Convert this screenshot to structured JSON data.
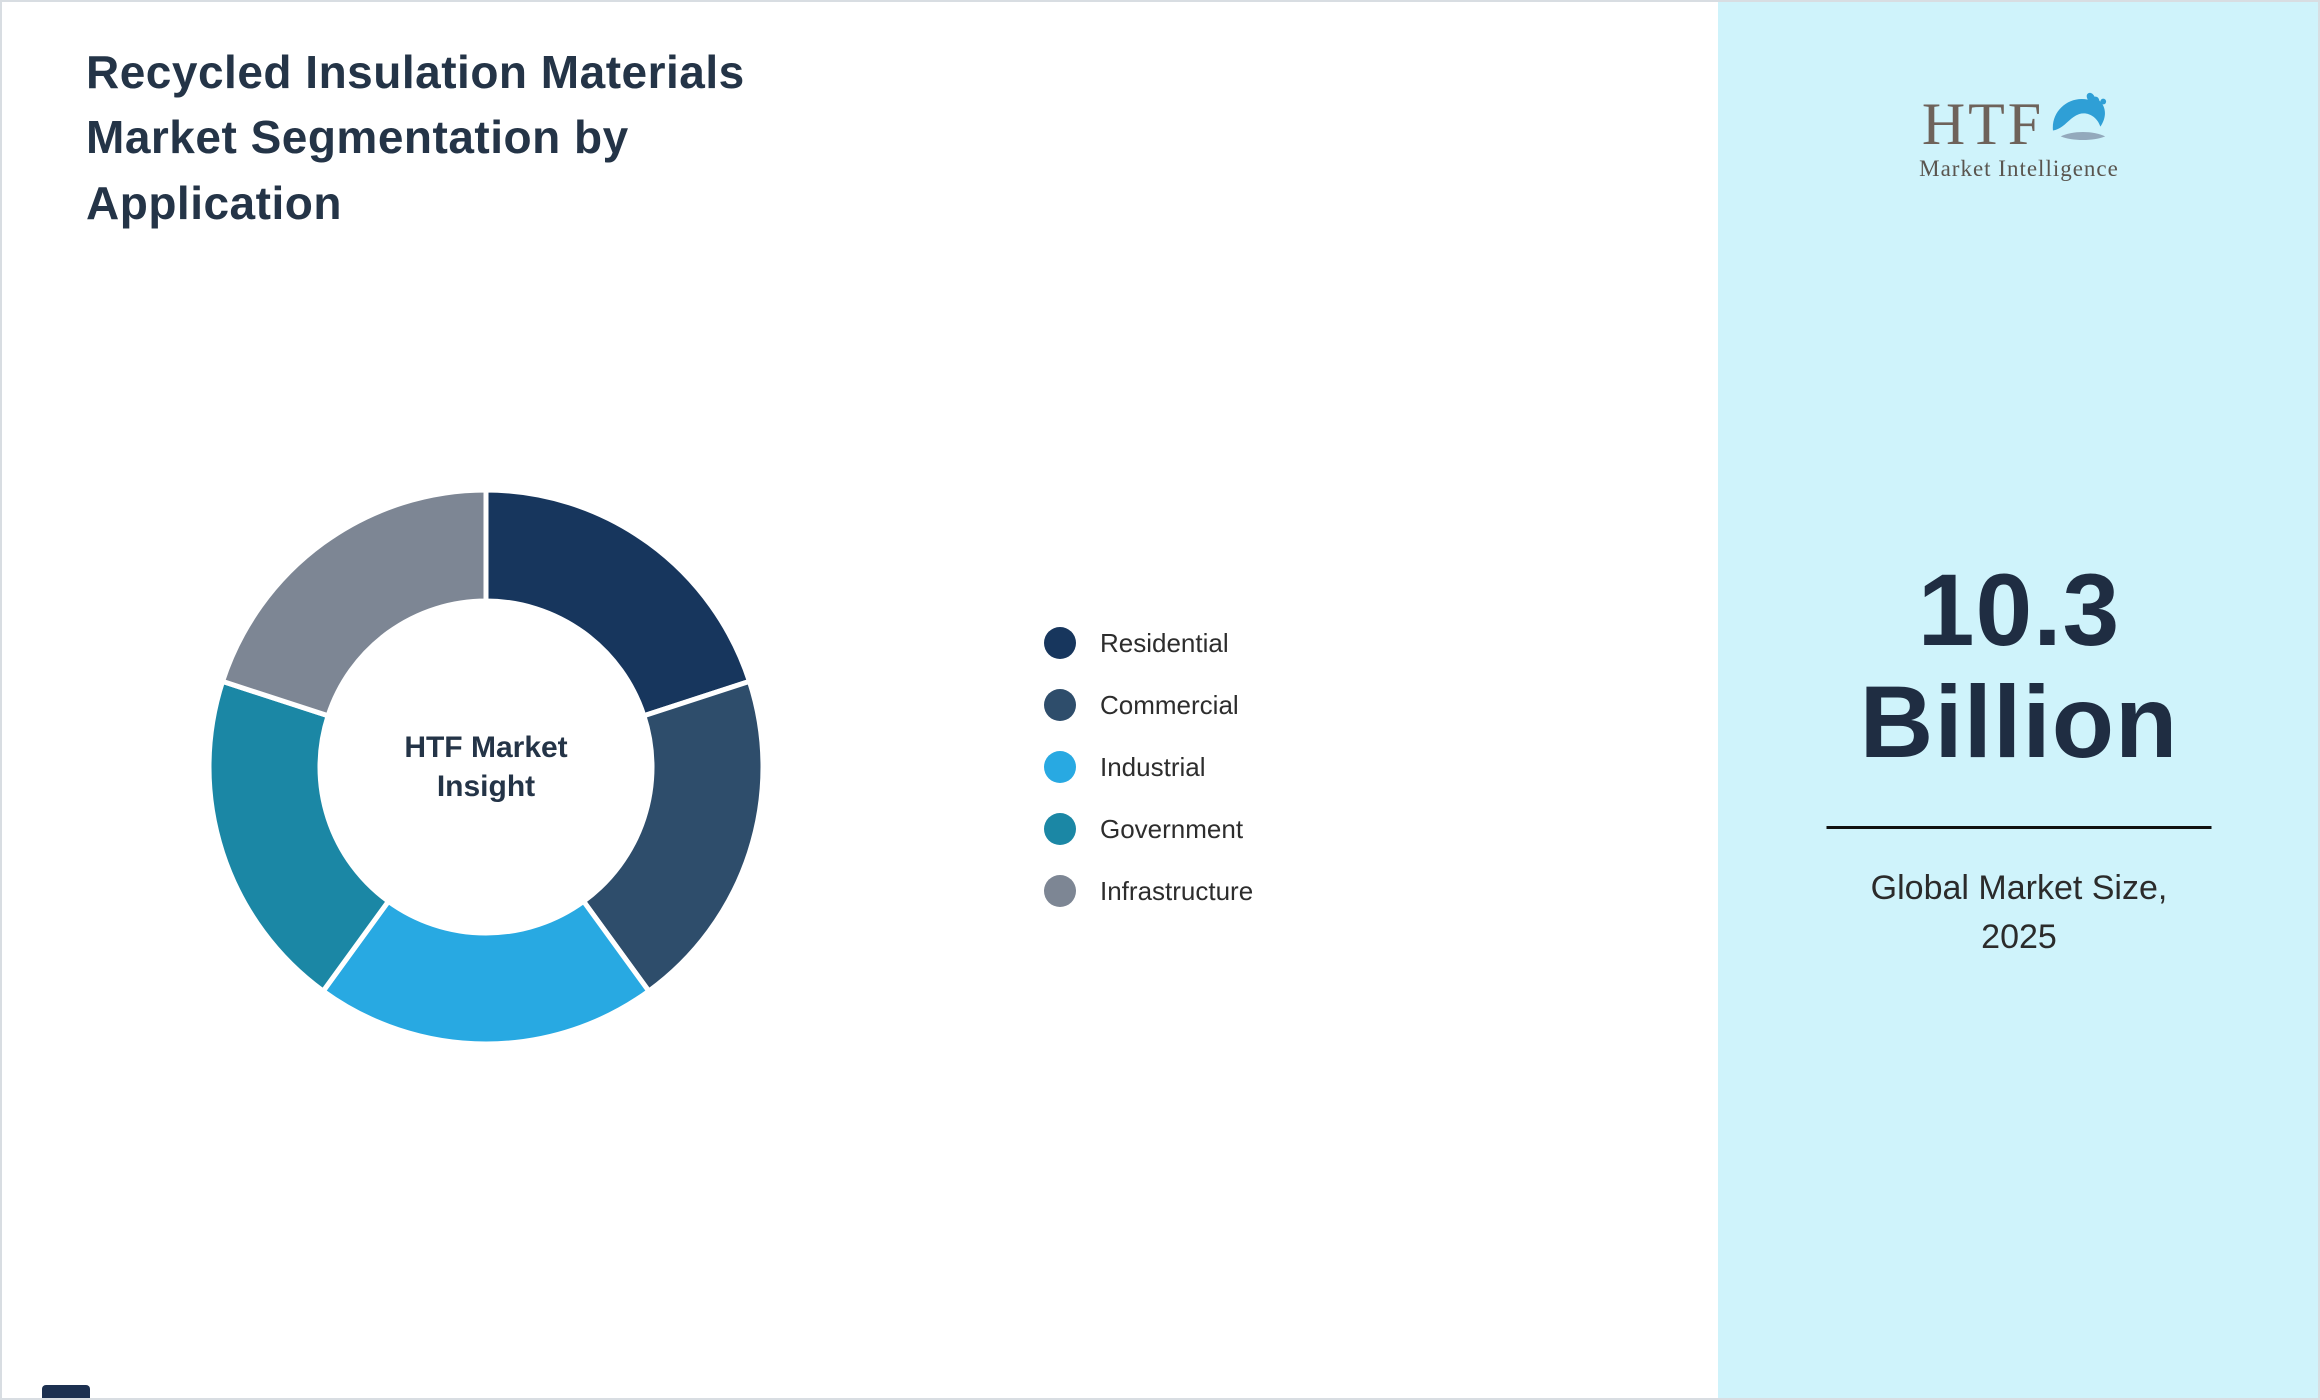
{
  "header": {
    "title_lines": [
      "Recycled Insulation Materials",
      "Market Segmentation by",
      "Application"
    ]
  },
  "chart_data": {
    "type": "pie",
    "subtype": "donut",
    "title": "Recycled Insulation Materials Market Segmentation by Application",
    "center_label": "HTF Market Insight",
    "categories": [
      "Residential",
      "Commercial",
      "Industrial",
      "Government",
      "Infrastructure"
    ],
    "values": [
      20,
      20,
      20,
      20,
      20
    ],
    "colors": [
      "#17365d",
      "#2e4d6b",
      "#28a9e2",
      "#1b87a5",
      "#7d8694"
    ],
    "legend_position": "right",
    "start_angle_deg": 0,
    "direction": "clockwise"
  },
  "sidebar": {
    "background_color": "#cff3fb",
    "logo": {
      "text": "HTF",
      "subtext": "Market Intelligence",
      "dolphin_icon_colors": [
        "#2f9fd6",
        "#93a9bc"
      ]
    },
    "market_size": {
      "value": "10.3",
      "unit": "Billion",
      "caption_lines": [
        "Global Market Size,",
        "2025"
      ]
    }
  }
}
